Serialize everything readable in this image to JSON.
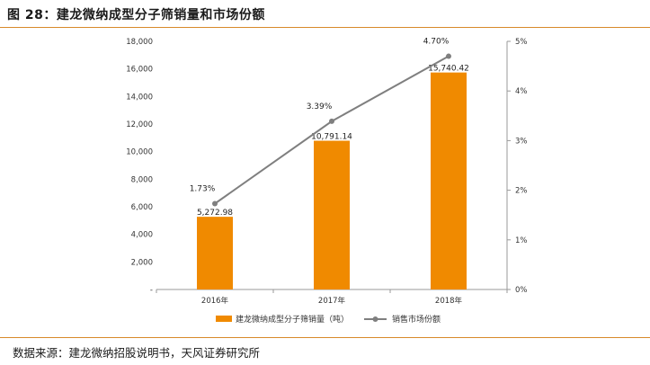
{
  "figure": {
    "title": "图 28：建龙微纳成型分子筛销量和市场份额",
    "source": "数据来源：建龙微纳招股说明书，天风证券研究所"
  },
  "colors": {
    "accent_rule": "#d88a2a",
    "bar": "#f08a00",
    "line": "#7f7f7f",
    "axis": "#999999"
  },
  "chart_data": {
    "type": "bar",
    "categories": [
      "2016年",
      "2017年",
      "2018年"
    ],
    "series": [
      {
        "name": "建龙微纳成型分子筛销量（吨）",
        "type": "bar",
        "axis": "left",
        "values": [
          5272.98,
          10791.14,
          15740.42
        ],
        "labels": [
          "5,272.98",
          "10,791.14",
          "15,740.42"
        ]
      },
      {
        "name": "销售市场份额",
        "type": "line",
        "axis": "right",
        "values": [
          1.73,
          3.39,
          4.7
        ],
        "labels": [
          "1.73%",
          "3.39%",
          "4.70%"
        ]
      }
    ],
    "y_left": {
      "ylim": [
        0,
        18000
      ],
      "ticks": [
        0,
        2000,
        4000,
        6000,
        8000,
        10000,
        12000,
        14000,
        16000,
        18000
      ],
      "tick_labels": [
        "-",
        "2,000",
        "4,000",
        "6,000",
        "8,000",
        "10,000",
        "12,000",
        "14,000",
        "16,000",
        "18,000"
      ]
    },
    "y_right": {
      "ylim": [
        0,
        5
      ],
      "ticks": [
        0,
        1,
        2,
        3,
        4,
        5
      ],
      "tick_labels": [
        "0%",
        "1%",
        "2%",
        "3%",
        "4%",
        "5%"
      ]
    },
    "grid": false,
    "legend": "bottom"
  }
}
